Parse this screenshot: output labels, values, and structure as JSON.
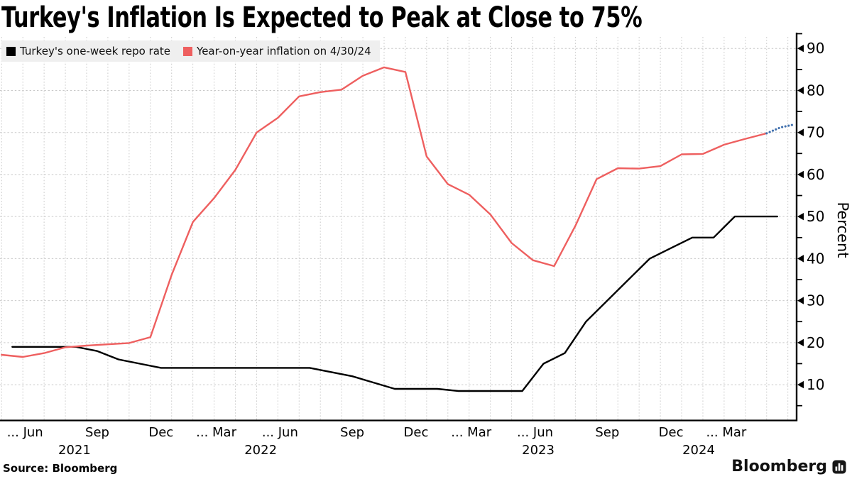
{
  "title": "Turkey's Inflation Is Expected to Peak at Close to 75%",
  "source_label": "Source: Bloomberg",
  "brand": "Bloomberg",
  "legend": [
    {
      "label": "Turkey's one-week repo rate",
      "color": "#000000"
    },
    {
      "label": "Year-on-year inflation on 4/30/24",
      "color": "#ee5f5f"
    }
  ],
  "y_axis": {
    "label": "Percent",
    "major_ticks": [
      10,
      20,
      30,
      40,
      50,
      60,
      70,
      80,
      90
    ],
    "minor_ticks": [
      5,
      15,
      25,
      35,
      45,
      55,
      65,
      75,
      85,
      93.5
    ]
  },
  "x_axis": {
    "ticks": [
      {
        "label": "... Jun",
        "m": 0
      },
      {
        "label": "Sep",
        "m": 3
      },
      {
        "label": "Dec",
        "m": 6
      },
      {
        "label": "... Mar",
        "m": 9
      },
      {
        "label": "... Jun",
        "m": 12
      },
      {
        "label": "Sep",
        "m": 15
      },
      {
        "label": "Dec",
        "m": 18
      },
      {
        "label": "... Mar",
        "m": 21
      },
      {
        "label": "... Jun",
        "m": 24
      },
      {
        "label": "Sep",
        "m": 27
      },
      {
        "label": "Dec",
        "m": 30
      },
      {
        "label": "... Mar",
        "m": 33
      }
    ],
    "years": [
      {
        "label": "2021",
        "m": 1.93
      },
      {
        "label": "2022",
        "m": 10.69
      },
      {
        "label": "2023",
        "m": 23.75
      },
      {
        "label": "2024",
        "m": 31.3
      }
    ]
  },
  "chart_data": {
    "type": "line",
    "title": "Turkey's Inflation Is Expected to Peak at Close to 75%",
    "ylabel": "Percent",
    "ylim": [
      0,
      93
    ],
    "grid": "dashed monthly vertical and 10-unit horizontal",
    "legend_position": "top-left",
    "x_cadence": "monthly",
    "series": [
      {
        "name": "Turkey's one-week repo rate",
        "color": "#000000",
        "dashed": false,
        "start_month": "2021-05",
        "month_offset": 0,
        "step_months": 1,
        "values": [
          19,
          19,
          19,
          19,
          18,
          16,
          15,
          14,
          14,
          14,
          14,
          14,
          14,
          14,
          14,
          13,
          12,
          10.5,
          9,
          9,
          9,
          8.5,
          8.5,
          8.5,
          8.5,
          15,
          17.5,
          25,
          30,
          35,
          40,
          42.5,
          45,
          45,
          50,
          50,
          50
        ]
      },
      {
        "name": "Year-on-year inflation on 4/30/24",
        "color": "#ee5f5f",
        "dashed": false,
        "start_month": "2021-04",
        "month_offset": 0.5,
        "step_months": 1,
        "values": [
          17.1,
          16.6,
          17.5,
          18.9,
          19.3,
          19.6,
          19.9,
          21.3,
          36.1,
          48.7,
          54.4,
          61.1,
          70,
          73.5,
          78.6,
          79.6,
          80.2,
          83.5,
          85.5,
          84.4,
          64.3,
          57.7,
          55.2,
          50.5,
          43.7,
          39.6,
          38.2,
          47.8,
          58.9,
          61.5,
          61.4,
          62,
          64.8,
          64.9,
          67.1,
          68.5,
          69.8
        ]
      },
      {
        "name": "Inflation forecast (dotted)",
        "color": "#3f6fad",
        "dashed": true,
        "start_month": "2024-04",
        "month_offset": 0.5,
        "step_months": 0.65,
        "values": [
          69.8,
          71.2,
          71.9
        ]
      }
    ]
  }
}
